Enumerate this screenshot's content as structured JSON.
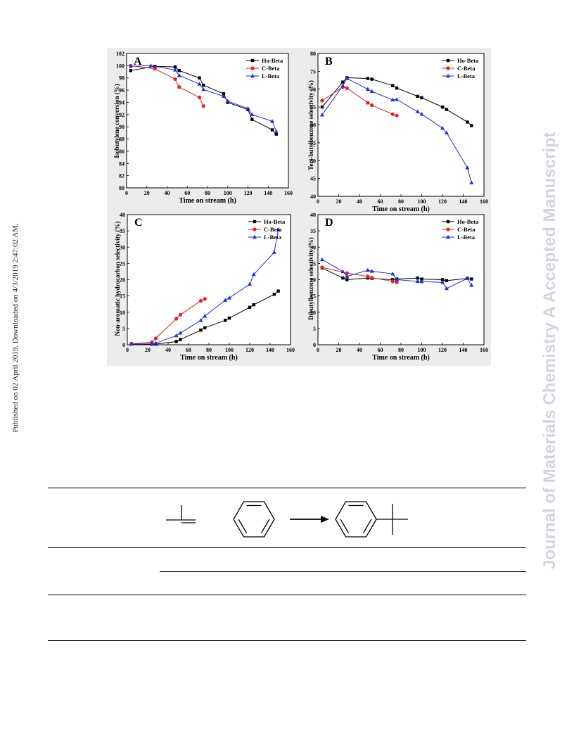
{
  "side_note": "Published on 02 April 2019. Downloaded on 4/3/2019 2:47:02 AM.",
  "watermark": "Journal of Materials Chemistry A Accepted Manuscript",
  "colors": {
    "Ho-Beta": "#000000",
    "C-Beta": "#ee1c1c",
    "L-Beta": "#1c2ee6"
  },
  "chart_data": [
    {
      "panel": "A",
      "type": "line",
      "xlabel": "Time on stream (h)",
      "ylabel": "Isobutylene conversion (%)",
      "xlim": [
        0,
        160
      ],
      "ylim": [
        80,
        102
      ],
      "xticks": [
        0,
        20,
        40,
        60,
        80,
        100,
        120,
        140,
        160
      ],
      "yticks": [
        80,
        82,
        84,
        86,
        88,
        90,
        92,
        94,
        96,
        98,
        100,
        102
      ],
      "legend": "top-right",
      "series": [
        {
          "name": "Ho-Beta",
          "marker": "square",
          "x": [
            4,
            28,
            48,
            52,
            72,
            76,
            96,
            100,
            120,
            124,
            144,
            148
          ],
          "y": [
            99.2,
            99.9,
            99.8,
            99.2,
            98.0,
            96.8,
            95.4,
            94.0,
            92.8,
            91.2,
            89.5,
            88.8
          ]
        },
        {
          "name": "C-Beta",
          "marker": "circle",
          "x": [
            4,
            28,
            48,
            52,
            72,
            76
          ],
          "y": [
            100.0,
            99.5,
            97.8,
            96.5,
            94.8,
            93.4
          ]
        },
        {
          "name": "L-Beta",
          "marker": "triangle",
          "x": [
            4,
            24,
            48,
            52,
            72,
            76,
            96,
            100,
            120,
            124,
            144,
            148
          ],
          "y": [
            99.9,
            100.0,
            99.3,
            98.4,
            97.0,
            96.1,
            95.0,
            94.2,
            93.0,
            92.0,
            90.9,
            89.2
          ]
        }
      ]
    },
    {
      "panel": "B",
      "type": "line",
      "xlabel": "Time on stream (h)",
      "ylabel": "Tert-butylbenzene selectivity (%)",
      "xlim": [
        0,
        160
      ],
      "ylim": [
        40,
        80
      ],
      "xticks": [
        0,
        20,
        40,
        60,
        80,
        100,
        120,
        140,
        160
      ],
      "yticks": [
        40,
        45,
        50,
        55,
        60,
        65,
        70,
        75,
        80
      ],
      "legend": "top-right",
      "series": [
        {
          "name": "Ho-Beta",
          "marker": "square",
          "x": [
            4,
            24,
            28,
            48,
            52,
            72,
            76,
            96,
            100,
            120,
            124,
            144,
            148
          ],
          "y": [
            65.0,
            72.0,
            73.2,
            73.0,
            72.8,
            71.0,
            70.3,
            68.0,
            67.6,
            65.0,
            64.3,
            60.8,
            59.8
          ]
        },
        {
          "name": "C-Beta",
          "marker": "circle",
          "x": [
            4,
            24,
            28,
            48,
            52,
            72,
            76
          ],
          "y": [
            66.8,
            70.6,
            70.3,
            66.2,
            65.5,
            63.0,
            62.6
          ]
        },
        {
          "name": "L-Beta",
          "marker": "triangle",
          "x": [
            4,
            24,
            28,
            48,
            52,
            72,
            76,
            96,
            100,
            120,
            124,
            144,
            148
          ],
          "y": [
            62.8,
            71.0,
            73.0,
            70.0,
            69.4,
            67.0,
            67.1,
            63.7,
            63.0,
            59.1,
            57.8,
            48.0,
            43.8
          ]
        }
      ]
    },
    {
      "panel": "C",
      "type": "line",
      "xlabel": "Time on stream (h)",
      "ylabel": "Non-aromatic hydrocarbon selectivity (%)",
      "xlim": [
        0,
        160
      ],
      "ylim": [
        0,
        40
      ],
      "xticks": [
        0,
        20,
        40,
        60,
        80,
        100,
        120,
        140,
        160
      ],
      "yticks": [
        0,
        5,
        10,
        15,
        20,
        25,
        30,
        35,
        40
      ],
      "legend": "top-right",
      "series": [
        {
          "name": "Ho-Beta",
          "marker": "square",
          "x": [
            4,
            24,
            28,
            48,
            52,
            72,
            76,
            96,
            100,
            120,
            124,
            144,
            148
          ],
          "y": [
            0.3,
            0.2,
            0.2,
            1.0,
            1.6,
            4.5,
            5.2,
            7.5,
            8.2,
            11.5,
            12.3,
            15.5,
            16.5
          ]
        },
        {
          "name": "C-Beta",
          "marker": "circle",
          "x": [
            4,
            24,
            28,
            48,
            52,
            72,
            76
          ],
          "y": [
            0.3,
            0.8,
            2.0,
            8.0,
            9.2,
            13.5,
            14.1
          ]
        },
        {
          "name": "L-Beta",
          "marker": "triangle",
          "x": [
            4,
            24,
            28,
            48,
            52,
            72,
            76,
            96,
            100,
            120,
            124,
            144,
            148
          ],
          "y": [
            0.2,
            0.3,
            0.5,
            2.8,
            3.6,
            7.5,
            8.8,
            13.7,
            14.4,
            18.6,
            21.6,
            28.4,
            35.4
          ]
        }
      ]
    },
    {
      "panel": "D",
      "type": "line",
      "xlabel": "Time on stream (h)",
      "ylabel": "Dibutylbenzene selectivity (%)",
      "xlim": [
        0,
        160
      ],
      "ylim": [
        0,
        40
      ],
      "xticks": [
        0,
        20,
        40,
        60,
        80,
        100,
        120,
        140,
        160
      ],
      "yticks": [
        0,
        5,
        10,
        15,
        20,
        25,
        30,
        35,
        40
      ],
      "legend": "top-right",
      "series": [
        {
          "name": "Ho-Beta",
          "marker": "square",
          "x": [
            4,
            24,
            28,
            48,
            52,
            72,
            76,
            96,
            100,
            120,
            124,
            144,
            148
          ],
          "y": [
            23.6,
            20.5,
            20.0,
            20.5,
            20.4,
            20.0,
            20.2,
            20.5,
            20.2,
            20.0,
            19.7,
            20.4,
            20.2
          ]
        },
        {
          "name": "C-Beta",
          "marker": "circle",
          "x": [
            4,
            28,
            48,
            52,
            72,
            76
          ],
          "y": [
            23.8,
            22.0,
            21.0,
            20.6,
            19.5,
            19.2
          ]
        },
        {
          "name": "L-Beta",
          "marker": "triangle",
          "x": [
            4,
            24,
            28,
            48,
            52,
            72,
            76,
            96,
            100,
            120,
            124,
            144,
            148
          ],
          "y": [
            26.2,
            22.5,
            21.0,
            22.9,
            22.6,
            21.8,
            20.0,
            19.5,
            19.4,
            19.2,
            17.3,
            20.4,
            18.3
          ]
        }
      ]
    }
  ]
}
